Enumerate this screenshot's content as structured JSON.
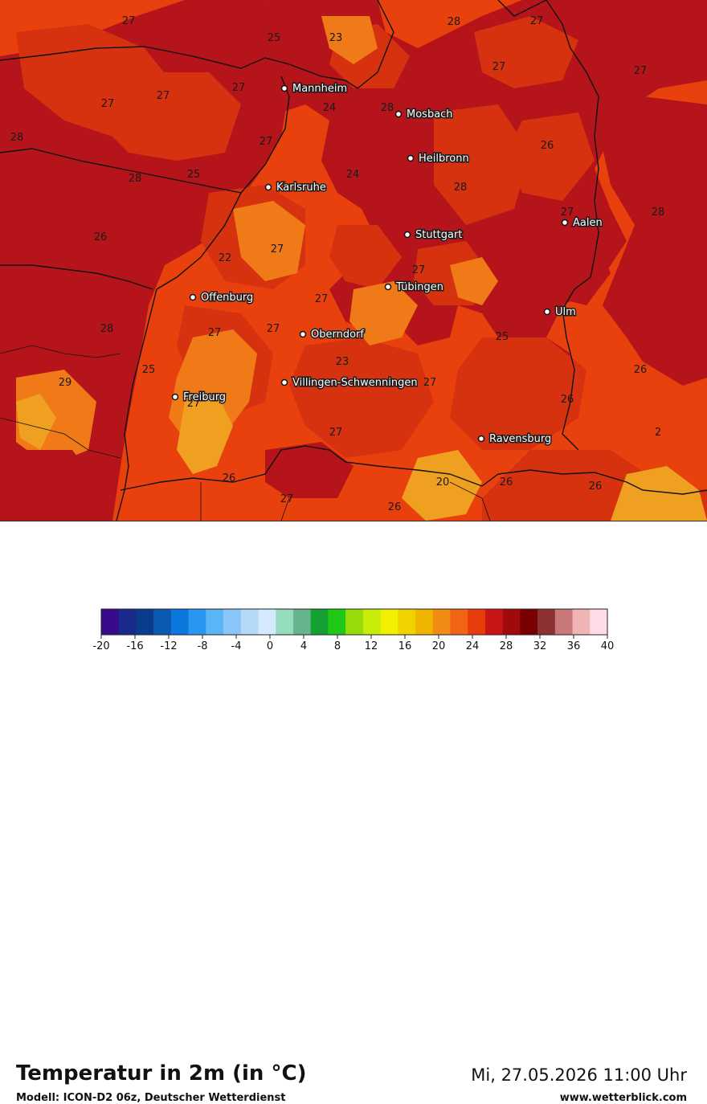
{
  "map": {
    "cities": [
      {
        "name": "Mannheim"
      },
      {
        "name": "Mosbach"
      },
      {
        "name": "Heilbronn"
      },
      {
        "name": "Karlsruhe"
      },
      {
        "name": "Stuttgart"
      },
      {
        "name": "Aalen"
      },
      {
        "name": "Tübingen"
      },
      {
        "name": "Offenburg"
      },
      {
        "name": "Ulm"
      },
      {
        "name": "Oberndorf"
      },
      {
        "name": "Villingen-Schwenningen"
      },
      {
        "name": "Freiburg"
      },
      {
        "name": "Ravensburg"
      }
    ],
    "temperature_labels": [
      "27",
      "25",
      "23",
      "28",
      "27",
      "27",
      "27",
      "27",
      "27",
      "24",
      "28",
      "28",
      "27",
      "26",
      "25",
      "24",
      "28",
      "27",
      "28",
      "27",
      "28",
      "26",
      "22",
      "27",
      "27",
      "27",
      "28",
      "27",
      "27",
      "25",
      "29",
      "27",
      "23",
      "27",
      "26",
      "26",
      "25",
      "27",
      "20",
      "26",
      "26",
      "26",
      "27",
      "26",
      "2"
    ],
    "colors": {
      "t20": "#f0a020",
      "t22": "#f07a18",
      "t24": "#e8410e",
      "t26": "#d63210",
      "t28": "#b5151a"
    }
  },
  "footer": {
    "title": "Temperatur in 2m (in °C)",
    "model": "Modell: ICON-D2 06z, Deutscher Wetterdienst",
    "datetime": "Mi, 27.05.2026 11:00 Uhr",
    "website": "www.wetterblick.com"
  },
  "legend": {
    "ticks": [
      "-20",
      "-16",
      "-12",
      "-8",
      "-4",
      "0",
      "4",
      "8",
      "12",
      "16",
      "20",
      "24",
      "28",
      "32",
      "36",
      "40"
    ],
    "colors": [
      "#3a0a8c",
      "#1a2a8a",
      "#0a3c8c",
      "#0a5ab4",
      "#0a78dc",
      "#2a96f0",
      "#5ab4f6",
      "#8ac6f8",
      "#b4daf8",
      "#d6eaff",
      "#96dcbe",
      "#64b48c",
      "#14a032",
      "#1ec814",
      "#96dc0a",
      "#c8ec0a",
      "#f0f000",
      "#f0d200",
      "#f0b400",
      "#f08c14",
      "#f06414",
      "#e83c0a",
      "#c81414",
      "#a00a0a",
      "#780000",
      "#8c3232",
      "#c87878",
      "#f0b4b4",
      "#ffdce6"
    ]
  }
}
